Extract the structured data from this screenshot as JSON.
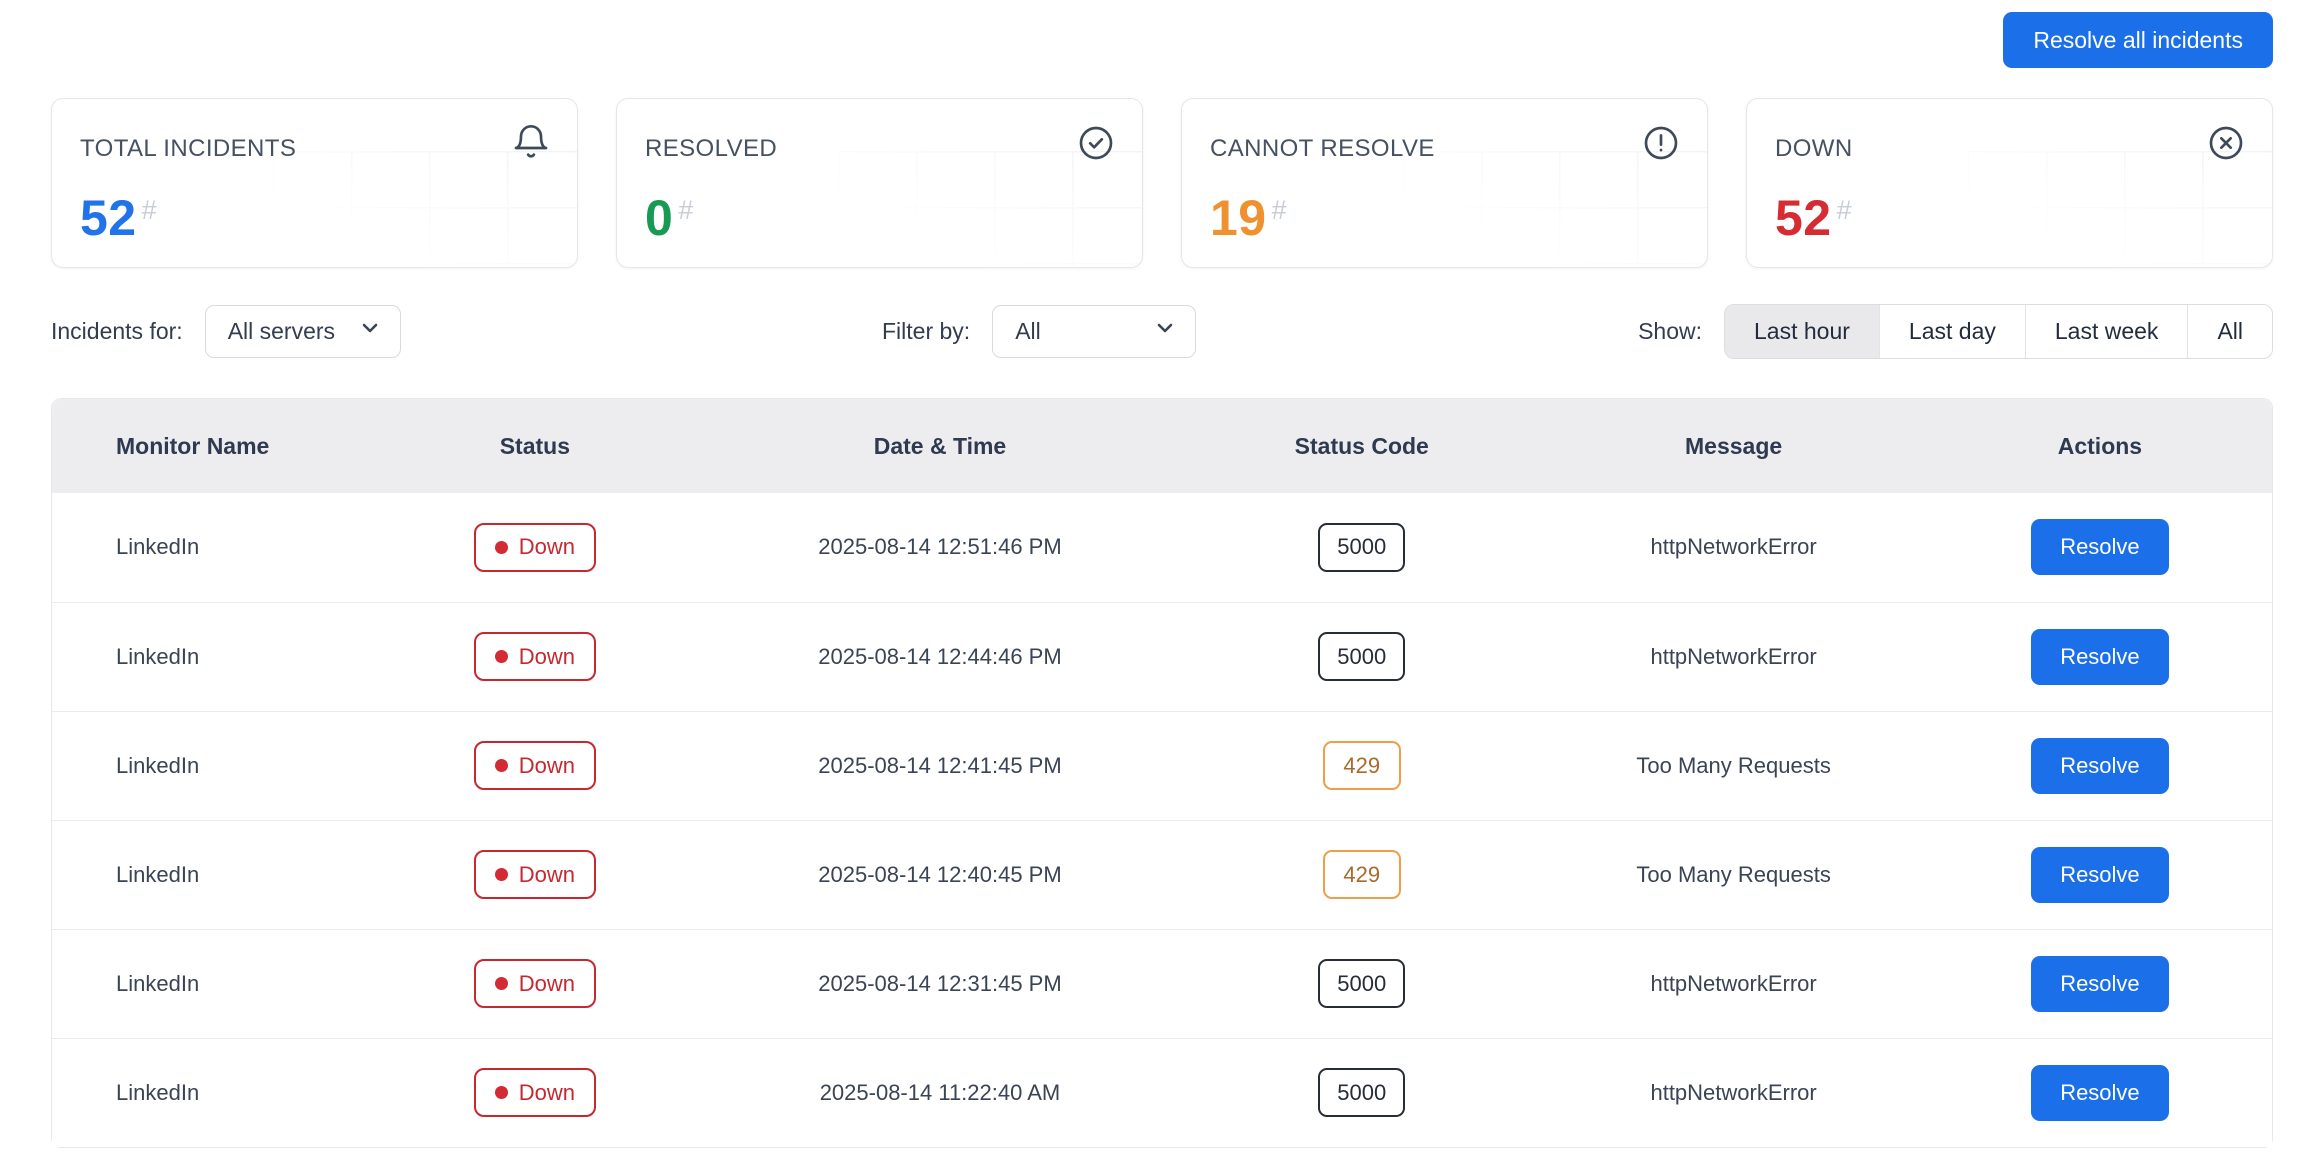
{
  "topbar": {
    "resolve_all_label": "Resolve all incidents"
  },
  "stats": [
    {
      "label": "TOTAL INCIDENTS",
      "value": "52",
      "unit": "#",
      "icon": "bell-icon",
      "color": "#2173e9"
    },
    {
      "label": "RESOLVED",
      "value": "0",
      "unit": "#",
      "icon": "check-circle-icon",
      "color": "#179a54"
    },
    {
      "label": "CANNOT RESOLVE",
      "value": "19",
      "unit": "#",
      "icon": "alert-circle-icon",
      "color": "#f0912f"
    },
    {
      "label": "DOWN",
      "value": "52",
      "unit": "#",
      "icon": "x-circle-icon",
      "color": "#d62b33"
    }
  ],
  "filters": {
    "incidents_for_label": "Incidents for:",
    "server_select_value": "All servers",
    "filter_by_label": "Filter by:",
    "filter_select_value": "All",
    "show_label": "Show:",
    "show_options": [
      {
        "label": "Last hour",
        "active": true
      },
      {
        "label": "Last day",
        "active": false
      },
      {
        "label": "Last week",
        "active": false
      },
      {
        "label": "All",
        "active": false
      }
    ]
  },
  "table": {
    "columns": [
      "Monitor Name",
      "Status",
      "Date & Time",
      "Status Code",
      "Message",
      "Actions"
    ],
    "rows": [
      {
        "monitor": "LinkedIn",
        "status": "Down",
        "datetime": "2025-08-14 12:51:46 PM",
        "code": "5000",
        "code_type": "error",
        "message": "httpNetworkError",
        "action": "Resolve"
      },
      {
        "monitor": "LinkedIn",
        "status": "Down",
        "datetime": "2025-08-14 12:44:46 PM",
        "code": "5000",
        "code_type": "error",
        "message": "httpNetworkError",
        "action": "Resolve"
      },
      {
        "monitor": "LinkedIn",
        "status": "Down",
        "datetime": "2025-08-14 12:41:45 PM",
        "code": "429",
        "code_type": "warning",
        "message": "Too Many Requests",
        "action": "Resolve"
      },
      {
        "monitor": "LinkedIn",
        "status": "Down",
        "datetime": "2025-08-14 12:40:45 PM",
        "code": "429",
        "code_type": "warning",
        "message": "Too Many Requests",
        "action": "Resolve"
      },
      {
        "monitor": "LinkedIn",
        "status": "Down",
        "datetime": "2025-08-14 12:31:45 PM",
        "code": "5000",
        "code_type": "error",
        "message": "httpNetworkError",
        "action": "Resolve"
      },
      {
        "monitor": "LinkedIn",
        "status": "Down",
        "datetime": "2025-08-14 11:22:40 AM",
        "code": "5000",
        "code_type": "error",
        "message": "httpNetworkError",
        "action": "Resolve"
      }
    ]
  },
  "colors": {
    "accent_blue": "#1b6fe8",
    "status_red": "#c6282f",
    "status_orange": "#eb9f48",
    "header_bg": "#ededef",
    "border": "#e7e8ec"
  }
}
